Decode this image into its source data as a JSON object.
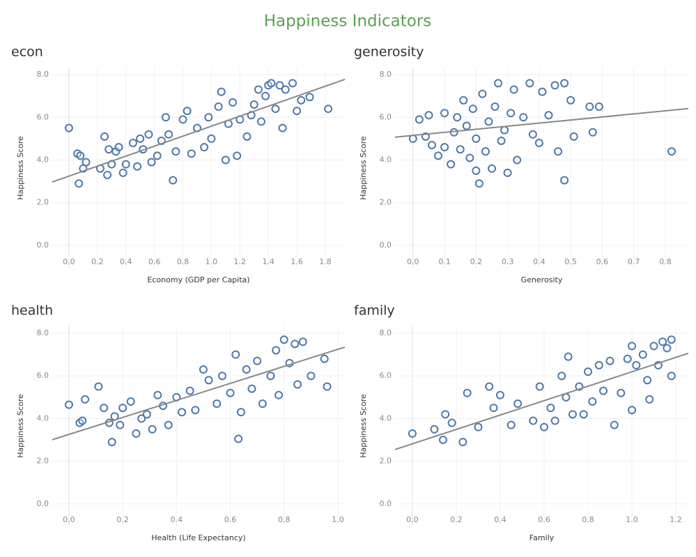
{
  "title": "Happiness Indicators",
  "chart_data": [
    {
      "type": "scatter",
      "title": "econ",
      "x_label": "Economy (GDP per Capita)",
      "y_label": "Happiness Score",
      "color": "#4e79a7",
      "grid": true,
      "xlim": [
        -0.117,
        1.937
      ],
      "ylim": [
        -1.08,
        8.33
      ],
      "xticks": [
        {
          "value": 0,
          "label": "0.0"
        },
        {
          "value": 0.2,
          "label": "0.2"
        },
        {
          "value": 0.4,
          "label": "0.4"
        },
        {
          "value": 0.6,
          "label": "0.6"
        },
        {
          "value": 0.8,
          "label": "0.8"
        },
        {
          "value": 1.0,
          "label": "1.0"
        },
        {
          "value": 1.2,
          "label": "1.2"
        },
        {
          "value": 1.4,
          "label": "1.4"
        },
        {
          "value": 1.6,
          "label": "1.6"
        },
        {
          "value": 1.8,
          "label": "1.8"
        }
      ],
      "yticks": [
        {
          "value": 0,
          "label": "0.0"
        },
        {
          "value": 2,
          "label": "2.0"
        },
        {
          "value": 4,
          "label": "4.0"
        },
        {
          "value": 6,
          "label": "6.0"
        },
        {
          "value": 8,
          "label": "8.0"
        }
      ],
      "x": [
        0,
        0.06,
        0.07,
        0.08,
        0.1,
        0.12,
        0.22,
        0.25,
        0.27,
        0.28,
        0.3,
        0.33,
        0.35,
        0.38,
        0.4,
        0.45,
        0.48,
        0.5,
        0.52,
        0.56,
        0.58,
        0.62,
        0.65,
        0.68,
        0.7,
        0.73,
        0.75,
        0.8,
        0.83,
        0.86,
        0.9,
        0.95,
        0.98,
        1.0,
        1.05,
        1.07,
        1.1,
        1.12,
        1.15,
        1.18,
        1.2,
        1.25,
        1.28,
        1.3,
        1.33,
        1.35,
        1.38,
        1.4,
        1.42,
        1.45,
        1.48,
        1.5,
        1.52,
        1.57,
        1.6,
        1.63,
        1.69,
        1.82
      ],
      "y": [
        5.5,
        4.3,
        2.9,
        4.2,
        3.6,
        3.9,
        3.6,
        5.1,
        3.3,
        4.5,
        3.8,
        4.4,
        4.6,
        3.4,
        3.8,
        4.8,
        3.7,
        5.0,
        4.5,
        5.2,
        3.9,
        4.2,
        4.9,
        6.0,
        5.2,
        3.05,
        4.4,
        5.9,
        6.3,
        4.3,
        5.5,
        4.6,
        6.0,
        5.0,
        6.5,
        7.2,
        4.0,
        5.7,
        6.7,
        4.2,
        5.9,
        5.1,
        6.1,
        6.6,
        7.3,
        5.8,
        7.0,
        7.5,
        7.6,
        6.4,
        7.5,
        5.5,
        7.3,
        7.6,
        6.3,
        6.8,
        6.95,
        6.4
      ],
      "trend": {
        "x": [
          -0.117,
          1.937
        ],
        "y": [
          2.97,
          7.78
        ]
      }
    },
    {
      "type": "scatter",
      "title": "generosity",
      "x_label": "Generosity",
      "y_label": "Happiness Score",
      "color": "#4e79a7",
      "grid": true,
      "xlim": [
        -0.057,
        0.873
      ],
      "ylim": [
        -1.08,
        8.33
      ],
      "xticks": [
        {
          "value": 0,
          "label": "0.0"
        },
        {
          "value": 0.1,
          "label": "0.1"
        },
        {
          "value": 0.2,
          "label": "0.2"
        },
        {
          "value": 0.3,
          "label": "0.3"
        },
        {
          "value": 0.4,
          "label": "0.4"
        },
        {
          "value": 0.5,
          "label": "0.5"
        },
        {
          "value": 0.6,
          "label": "0.6"
        },
        {
          "value": 0.7,
          "label": "0.7"
        },
        {
          "value": 0.8,
          "label": "0.8"
        }
      ],
      "yticks": [
        {
          "value": 0,
          "label": "0.0"
        },
        {
          "value": 2,
          "label": "2.0"
        },
        {
          "value": 4,
          "label": "4.0"
        },
        {
          "value": 6,
          "label": "6.0"
        },
        {
          "value": 8,
          "label": "8.0"
        }
      ],
      "x": [
        0,
        0.02,
        0.04,
        0.05,
        0.06,
        0.08,
        0.1,
        0.1,
        0.12,
        0.13,
        0.14,
        0.15,
        0.16,
        0.17,
        0.18,
        0.19,
        0.2,
        0.2,
        0.21,
        0.22,
        0.23,
        0.24,
        0.25,
        0.26,
        0.27,
        0.28,
        0.29,
        0.3,
        0.31,
        0.32,
        0.33,
        0.35,
        0.37,
        0.38,
        0.4,
        0.41,
        0.43,
        0.45,
        0.46,
        0.48,
        0.48,
        0.5,
        0.51,
        0.56,
        0.57,
        0.59,
        0.82
      ],
      "y": [
        5.0,
        5.9,
        5.1,
        6.1,
        4.7,
        4.2,
        4.6,
        6.2,
        3.8,
        5.3,
        6.0,
        4.5,
        6.8,
        5.6,
        4.1,
        6.4,
        3.5,
        5.0,
        2.9,
        7.1,
        4.4,
        5.8,
        3.6,
        6.5,
        7.6,
        4.9,
        5.4,
        3.4,
        6.2,
        7.3,
        4.0,
        6.0,
        7.6,
        5.2,
        4.8,
        7.2,
        6.1,
        7.5,
        4.4,
        7.6,
        3.05,
        6.8,
        5.1,
        6.5,
        5.3,
        6.5,
        4.4
      ],
      "trend": {
        "x": [
          -0.057,
          0.873
        ],
        "y": [
          5.07,
          6.41
        ]
      }
    },
    {
      "type": "scatter",
      "title": "health",
      "x_label": "Health (Life Expectancy)",
      "y_label": "Happiness Score",
      "color": "#4e79a7",
      "grid": true,
      "xlim": [
        -0.062,
        1.026
      ],
      "ylim": [
        -1.05,
        8.36
      ],
      "xticks": [
        {
          "value": 0,
          "label": "0.0"
        },
        {
          "value": 0.2,
          "label": "0.2"
        },
        {
          "value": 0.4,
          "label": "0.4"
        },
        {
          "value": 0.6,
          "label": "0.6"
        },
        {
          "value": 0.8,
          "label": "0.8"
        },
        {
          "value": 1.0,
          "label": "1.0"
        }
      ],
      "yticks": [
        {
          "value": 0,
          "label": "0.0"
        },
        {
          "value": 2,
          "label": "2.0"
        },
        {
          "value": 4,
          "label": "4.0"
        },
        {
          "value": 6,
          "label": "6.0"
        },
        {
          "value": 8,
          "label": "8.0"
        }
      ],
      "x": [
        0,
        0.04,
        0.05,
        0.06,
        0.11,
        0.13,
        0.15,
        0.16,
        0.17,
        0.19,
        0.2,
        0.23,
        0.25,
        0.27,
        0.29,
        0.31,
        0.33,
        0.35,
        0.37,
        0.4,
        0.42,
        0.45,
        0.47,
        0.5,
        0.52,
        0.55,
        0.57,
        0.6,
        0.62,
        0.63,
        0.64,
        0.66,
        0.68,
        0.7,
        0.72,
        0.75,
        0.77,
        0.78,
        0.8,
        0.82,
        0.84,
        0.85,
        0.87,
        0.9,
        0.95,
        0.96
      ],
      "y": [
        4.65,
        3.8,
        3.9,
        4.9,
        5.5,
        4.5,
        3.8,
        2.9,
        4.1,
        3.7,
        4.5,
        4.8,
        3.3,
        4.0,
        4.2,
        3.5,
        5.1,
        4.6,
        3.7,
        5.0,
        4.3,
        5.3,
        4.4,
        6.3,
        5.8,
        4.7,
        6.0,
        5.2,
        7.0,
        3.05,
        4.3,
        6.3,
        5.4,
        6.7,
        4.7,
        6.0,
        7.2,
        5.1,
        7.7,
        6.6,
        7.5,
        5.6,
        7.6,
        6.0,
        6.8,
        5.5
      ],
      "trend": {
        "x": [
          -0.062,
          1.026
        ],
        "y": [
          3.01,
          7.35
        ]
      }
    },
    {
      "type": "scatter",
      "title": "family",
      "x_label": "Family",
      "y_label": "Happiness Score",
      "color": "#4e79a7",
      "grid": true,
      "xlim": [
        -0.079,
        1.257
      ],
      "ylim": [
        -1.05,
        8.36
      ],
      "xticks": [
        {
          "value": 0,
          "label": "0.0"
        },
        {
          "value": 0.2,
          "label": "0.2"
        },
        {
          "value": 0.4,
          "label": "0.4"
        },
        {
          "value": 0.6,
          "label": "0.6"
        },
        {
          "value": 0.8,
          "label": "0.8"
        },
        {
          "value": 1.0,
          "label": "1.0"
        },
        {
          "value": 1.2,
          "label": "1.2"
        }
      ],
      "yticks": [
        {
          "value": 0,
          "label": "0.0"
        },
        {
          "value": 2,
          "label": "2.0"
        },
        {
          "value": 4,
          "label": "4.0"
        },
        {
          "value": 6,
          "label": "6.0"
        },
        {
          "value": 8,
          "label": "8.0"
        }
      ],
      "x": [
        0,
        0.1,
        0.14,
        0.15,
        0.18,
        0.23,
        0.25,
        0.3,
        0.35,
        0.37,
        0.4,
        0.45,
        0.48,
        0.55,
        0.58,
        0.6,
        0.63,
        0.65,
        0.68,
        0.7,
        0.71,
        0.73,
        0.76,
        0.78,
        0.8,
        0.82,
        0.85,
        0.87,
        0.9,
        0.92,
        0.95,
        0.98,
        1.0,
        1.0,
        1.02,
        1.05,
        1.07,
        1.08,
        1.1,
        1.12,
        1.14,
        1.16,
        1.18,
        1.18
      ],
      "y": [
        3.3,
        3.5,
        3.0,
        4.2,
        3.8,
        2.9,
        5.2,
        3.6,
        5.5,
        4.5,
        5.1,
        3.7,
        4.7,
        3.9,
        5.5,
        3.6,
        4.5,
        3.9,
        6.0,
        5.0,
        6.9,
        4.2,
        5.5,
        4.2,
        6.2,
        4.8,
        6.5,
        5.3,
        6.7,
        3.7,
        5.2,
        6.8,
        7.4,
        4.4,
        6.5,
        7.0,
        5.8,
        4.9,
        7.4,
        6.5,
        7.6,
        7.3,
        7.7,
        6.0
      ],
      "trend": {
        "x": [
          -0.079,
          1.257
        ],
        "y": [
          2.55,
          7.06
        ]
      }
    }
  ]
}
